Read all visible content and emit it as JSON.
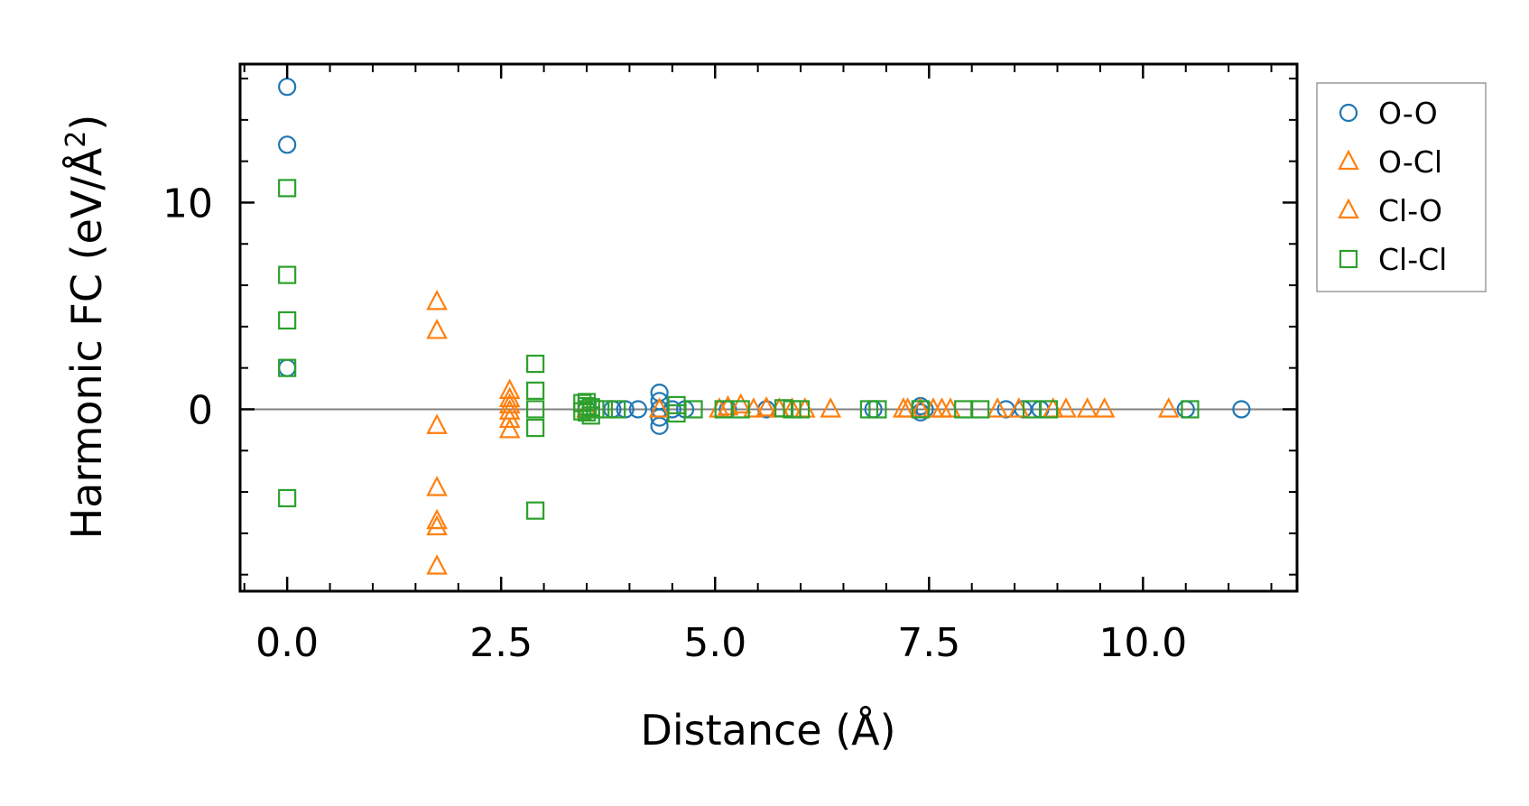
{
  "chart_data": {
    "type": "scatter",
    "title": "",
    "xlabel": "Distance (Å)",
    "ylabel": "Harmonic FC (eV/Å²)",
    "ylabel_base": "Harmonic FC (eV/Å",
    "ylabel_sup": "2",
    "ylabel_close": ")",
    "xlim": [
      -0.55,
      11.8
    ],
    "ylim": [
      -8.8,
      16.7
    ],
    "x_ticks": [
      0.0,
      2.5,
      5.0,
      7.5,
      10.0
    ],
    "x_tick_labels": [
      "0.0",
      "2.5",
      "5.0",
      "7.5",
      "10.0"
    ],
    "x_minor_step": 0.5,
    "y_ticks": [
      0,
      10
    ],
    "y_tick_labels": [
      "0",
      "10"
    ],
    "y_minor_step": 2,
    "zero_line": true,
    "grid": false,
    "legend_position": "outside-top-right",
    "series": [
      {
        "name": "O-O",
        "marker": "circle",
        "color": "#1f77b4",
        "points": [
          [
            0.0,
            15.6
          ],
          [
            0.0,
            12.8
          ],
          [
            0.0,
            2.0
          ],
          [
            3.5,
            0.0
          ],
          [
            3.8,
            0.0
          ],
          [
            3.95,
            0.0
          ],
          [
            4.1,
            0.0
          ],
          [
            4.35,
            0.8
          ],
          [
            4.35,
            0.4
          ],
          [
            4.35,
            0.0
          ],
          [
            4.35,
            -0.4
          ],
          [
            4.35,
            -0.8
          ],
          [
            4.5,
            0.0
          ],
          [
            4.65,
            0.0
          ],
          [
            5.15,
            0.0
          ],
          [
            5.6,
            0.0
          ],
          [
            6.85,
            0.0
          ],
          [
            7.4,
            0.15
          ],
          [
            7.4,
            -0.15
          ],
          [
            7.45,
            0.0
          ],
          [
            8.4,
            0.0
          ],
          [
            8.6,
            0.0
          ],
          [
            8.8,
            0.0
          ],
          [
            10.5,
            0.0
          ],
          [
            11.15,
            0.0
          ]
        ]
      },
      {
        "name": "O-Cl",
        "marker": "triangle",
        "color": "#ff7f0e",
        "points": [
          [
            1.75,
            5.2
          ],
          [
            1.75,
            3.8
          ],
          [
            1.75,
            -0.8
          ],
          [
            1.75,
            -3.8
          ],
          [
            1.75,
            -5.4
          ],
          [
            1.75,
            -5.7
          ],
          [
            1.75,
            -7.6
          ],
          [
            2.6,
            0.9
          ],
          [
            2.6,
            0.5
          ],
          [
            2.6,
            0.2
          ],
          [
            2.6,
            -0.1
          ],
          [
            2.6,
            -0.5
          ],
          [
            2.6,
            -1.0
          ],
          [
            3.5,
            0.0
          ],
          [
            4.35,
            0.0
          ],
          [
            5.05,
            0.0
          ],
          [
            5.15,
            0.1
          ],
          [
            5.3,
            0.2
          ],
          [
            5.45,
            0.0
          ],
          [
            5.6,
            0.05
          ],
          [
            5.75,
            0.0
          ],
          [
            5.9,
            0.0
          ],
          [
            6.05,
            0.0
          ],
          [
            6.35,
            0.0
          ],
          [
            7.2,
            0.0
          ],
          [
            7.25,
            0.0
          ],
          [
            7.4,
            0.0
          ],
          [
            7.55,
            0.0
          ],
          [
            7.65,
            0.0
          ],
          [
            7.75,
            0.0
          ],
          [
            8.3,
            0.0
          ],
          [
            8.55,
            0.0
          ],
          [
            8.95,
            0.0
          ],
          [
            9.1,
            0.0
          ],
          [
            9.35,
            0.0
          ],
          [
            9.55,
            0.0
          ],
          [
            10.3,
            0.0
          ]
        ]
      },
      {
        "name": "Cl-O",
        "marker": "triangle",
        "color": "#ff7f0e",
        "points": []
      },
      {
        "name": "Cl-Cl",
        "marker": "square",
        "color": "#2ca02c",
        "points": [
          [
            0.0,
            10.7
          ],
          [
            0.0,
            6.5
          ],
          [
            0.0,
            4.3
          ],
          [
            0.0,
            2.0
          ],
          [
            0.0,
            -4.3
          ],
          [
            2.9,
            2.2
          ],
          [
            2.9,
            0.9
          ],
          [
            2.9,
            0.0
          ],
          [
            2.9,
            -0.9
          ],
          [
            2.9,
            -4.9
          ],
          [
            3.45,
            0.3
          ],
          [
            3.5,
            0.15
          ],
          [
            3.5,
            0.0
          ],
          [
            3.5,
            -0.15
          ],
          [
            3.55,
            -0.3
          ],
          [
            3.5,
            0.35
          ],
          [
            3.45,
            -0.1
          ],
          [
            3.55,
            0.1
          ],
          [
            3.6,
            0.0
          ],
          [
            3.7,
            0.0
          ],
          [
            3.85,
            0.0
          ],
          [
            4.55,
            0.2
          ],
          [
            4.55,
            -0.2
          ],
          [
            4.75,
            0.0
          ],
          [
            5.1,
            0.0
          ],
          [
            5.3,
            0.0
          ],
          [
            5.8,
            0.05
          ],
          [
            5.9,
            0.0
          ],
          [
            6.0,
            0.0
          ],
          [
            6.8,
            0.0
          ],
          [
            6.9,
            0.0
          ],
          [
            7.4,
            0.0
          ],
          [
            7.9,
            0.0
          ],
          [
            8.1,
            0.0
          ],
          [
            8.7,
            0.0
          ],
          [
            8.9,
            0.0
          ],
          [
            10.55,
            0.0
          ]
        ]
      }
    ]
  }
}
